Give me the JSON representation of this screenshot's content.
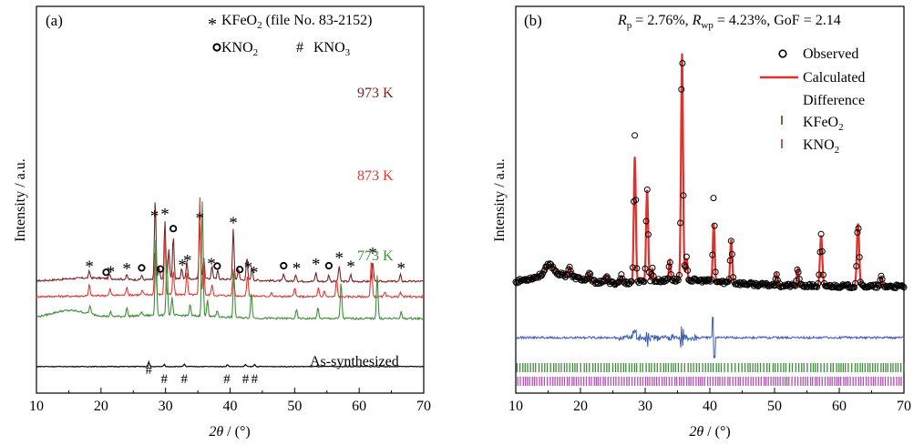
{
  "chart_data": [
    {
      "panel": "(a)",
      "type": "line",
      "xlabel_var": "2θ",
      "xlabel_unit": " / (°)",
      "ylabel": "Intensity / a.u.",
      "xlim": [
        10,
        70
      ],
      "xticks": [
        10,
        20,
        30,
        40,
        50,
        60,
        70
      ],
      "y_ticks_shown": false,
      "legend": {
        "kfeo2": "KFeO",
        "kfeo2_sub": "2",
        "kfeo2_ref": " (file No. 83-2152)",
        "kno2": "KNO",
        "kno2_sub": "2",
        "kno3": "KNO",
        "kno3_sub": "3",
        "placement": "top-right"
      },
      "series": [
        {
          "name": "973 K",
          "color": "#7a2424",
          "baseline": 17,
          "peaks": [
            [
              18.2,
              3
            ],
            [
              21.3,
              2
            ],
            [
              24.0,
              2
            ],
            [
              26.3,
              2
            ],
            [
              28.4,
              37
            ],
            [
              29.0,
              6
            ],
            [
              29.9,
              27
            ],
            [
              30.5,
              14
            ],
            [
              31.2,
              20
            ],
            [
              32.5,
              5
            ],
            [
              33.3,
              8
            ],
            [
              35.3,
              25
            ],
            [
              35.9,
              10
            ],
            [
              37.2,
              6
            ],
            [
              38.1,
              4
            ],
            [
              40.5,
              23
            ],
            [
              41.3,
              5
            ],
            [
              42.6,
              10
            ],
            [
              43.4,
              6
            ],
            [
              48.3,
              3
            ],
            [
              50.2,
              3
            ],
            [
              53.3,
              4
            ],
            [
              55.3,
              3
            ],
            [
              56.9,
              7
            ],
            [
              58.7,
              3
            ],
            [
              62.1,
              9
            ],
            [
              66.4,
              3
            ]
          ]
        },
        {
          "name": "873 K",
          "color": "#e03a35",
          "baseline": 10,
          "peaks": [
            [
              18.2,
              5
            ],
            [
              21.4,
              3
            ],
            [
              24.0,
              4
            ],
            [
              26.4,
              2
            ],
            [
              28.4,
              20
            ],
            [
              29.9,
              27
            ],
            [
              31.2,
              11
            ],
            [
              33.3,
              10
            ],
            [
              35.3,
              45
            ],
            [
              35.9,
              14
            ],
            [
              37.2,
              5
            ],
            [
              40.5,
              12
            ],
            [
              42.7,
              10
            ],
            [
              46.4,
              2
            ],
            [
              50.0,
              4
            ],
            [
              53.7,
              4
            ],
            [
              54.6,
              3
            ],
            [
              56.5,
              8
            ],
            [
              61.9,
              17
            ],
            [
              64.0,
              2
            ],
            [
              66.4,
              2
            ]
          ]
        },
        {
          "name": "773 K",
          "color": "#3f8f3a",
          "baseline": 0,
          "peaks": [
            [
              18.3,
              4
            ],
            [
              21.5,
              2
            ],
            [
              24.0,
              4
            ],
            [
              26.3,
              2
            ],
            [
              28.5,
              35
            ],
            [
              30.2,
              27
            ],
            [
              31.0,
              8
            ],
            [
              33.8,
              5
            ],
            [
              35.7,
              53
            ],
            [
              36.5,
              8
            ],
            [
              38.0,
              3
            ],
            [
              40.6,
              20
            ],
            [
              43.3,
              12
            ],
            [
              50.3,
              4
            ],
            [
              53.6,
              5
            ],
            [
              57.2,
              17
            ],
            [
              62.8,
              20
            ],
            [
              66.5,
              3
            ]
          ]
        },
        {
          "name": "As-synthesized",
          "color": "#000000",
          "baseline": -22,
          "peaks": [
            [
              27.4,
              2
            ],
            [
              29.8,
              1
            ],
            [
              32.9,
              1
            ],
            [
              39.6,
              1
            ],
            [
              42.4,
              1
            ],
            [
              43.8,
              1
            ]
          ]
        }
      ],
      "markers": {
        "star_positions": [
          18.2,
          21.5,
          24.0,
          28.3,
          29.9,
          32.6,
          33.4,
          35.3,
          37.1,
          40.5,
          42.8,
          43.7,
          50.3,
          53.3,
          56.9,
          58.7,
          62.1,
          66.5
        ],
        "circle_positions": [
          20.8,
          26.3,
          31.2,
          29.2,
          38.0,
          41.5,
          48.3,
          55.3
        ],
        "hash_positions": [
          27.4,
          29.8,
          32.9,
          39.5,
          42.4,
          43.8
        ]
      }
    },
    {
      "panel": "(b)",
      "type": "line",
      "xlabel_var": "2θ",
      "xlabel_unit": " / (°)",
      "ylabel": "Intensity / a.u.",
      "xlim": [
        10,
        70
      ],
      "xticks": [
        10,
        20,
        30,
        40,
        50,
        60,
        70
      ],
      "y_ticks_shown": false,
      "stats": {
        "rp": "2.76%",
        "rwp": "4.23%",
        "gof": "2.14"
      },
      "legend": {
        "observed": "Observed",
        "calculated": "Calculated",
        "difference": "Difference",
        "kfeo2": "KFeO",
        "kfeo2_sub": "2",
        "kno2": "KNO",
        "kno2_sub": "2",
        "placement": "top-right"
      },
      "colors": {
        "observed": "#000000",
        "calculated": "#e1312b",
        "difference": "#3a5bb0",
        "kfeo2_ticks": "#3e8a3c",
        "kno2_ticks": "#b04fb2"
      },
      "peaks": [
        [
          15.2,
          4,
          0.9
        ],
        [
          18.3,
          4,
          0.25
        ],
        [
          21.4,
          3,
          0.25
        ],
        [
          24.0,
          3,
          0.25
        ],
        [
          26.3,
          3,
          0.25
        ],
        [
          28.4,
          52,
          0.22
        ],
        [
          30.3,
          38,
          0.22
        ],
        [
          31.1,
          5,
          0.2
        ],
        [
          33.8,
          8,
          0.2
        ],
        [
          35.7,
          94,
          0.22
        ],
        [
          36.4,
          9,
          0.2
        ],
        [
          40.6,
          24,
          0.2
        ],
        [
          43.3,
          18,
          0.22
        ],
        [
          50.3,
          5,
          0.2
        ],
        [
          53.6,
          7,
          0.22
        ],
        [
          57.2,
          21,
          0.25
        ],
        [
          62.9,
          26,
          0.25
        ],
        [
          66.5,
          4,
          0.22
        ]
      ],
      "observed_excess": [
        [
          28.4,
          9
        ],
        [
          40.6,
          12
        ],
        [
          35.7,
          4
        ]
      ]
    }
  ]
}
